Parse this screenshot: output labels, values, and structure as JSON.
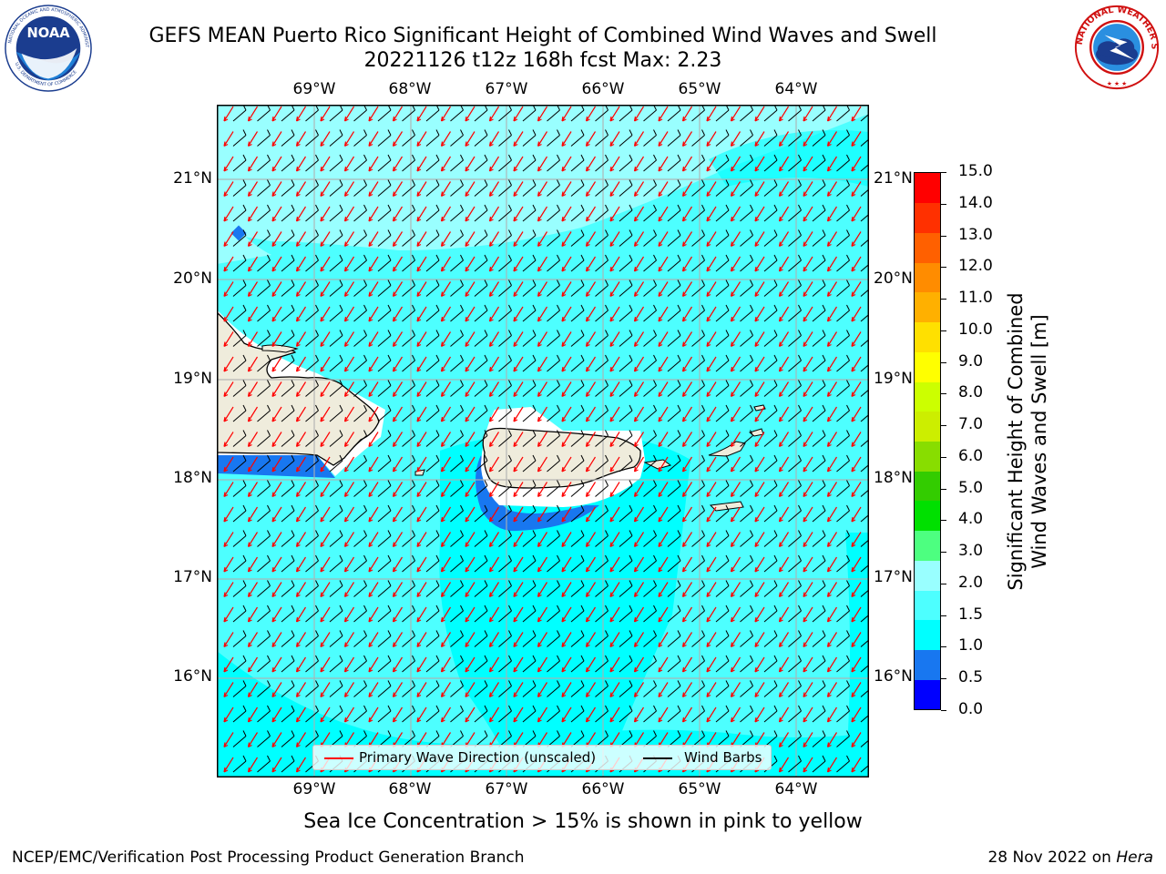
{
  "header": {
    "title_line1": "GEFS MEAN Puerto Rico Significant Height of Combined Wind Waves and Swell",
    "title_line2": "20221126 t12z 168h fcst   Max: 2.23"
  },
  "logos": {
    "left": {
      "name": "noaa-logo",
      "text": "NOAA",
      "ring_text": "NATIONAL OCEANIC AND ATMOSPHERIC ADMINISTRATION · U.S. DEPARTMENT OF COMMERCE"
    },
    "right": {
      "name": "nws-logo",
      "ring_text": "NATIONAL WEATHER SERVICE"
    }
  },
  "map": {
    "lon_labels": [
      "69°W",
      "68°W",
      "67°W",
      "66°W",
      "65°W",
      "64°W"
    ],
    "lat_labels": [
      "21°N",
      "20°N",
      "19°N",
      "18°N",
      "17°N",
      "16°N"
    ],
    "legend": {
      "wave_direction": "Primary Wave Direction (unscaled)",
      "wind_barbs": "Wind Barbs"
    },
    "colors": {
      "ocean_main": "#00ffff",
      "ocean_light": "#4dffff",
      "ocean_lighter": "#99ffff",
      "shallow_dark": "#1877f0",
      "land": "#efecdc",
      "arrow": "#ff0000",
      "barb": "#000000"
    }
  },
  "colorbar": {
    "label_line1": "Significant Height of Combined",
    "label_line2": "Wind Waves and Swell [m]",
    "ticks": [
      "15.0",
      "14.0",
      "13.0",
      "12.0",
      "11.0",
      "10.0",
      "9.0",
      "8.0",
      "7.0",
      "6.0",
      "5.0",
      "4.0",
      "3.0",
      "2.0",
      "1.5",
      "1.0",
      "0.5",
      "0.0"
    ],
    "colors_bottom_to_top": [
      "#0000ff",
      "#1877f0",
      "#00ffff",
      "#4dffff",
      "#99ffff",
      "#4dff80",
      "#00e000",
      "#33cc00",
      "#88dd00",
      "#ccee00",
      "#ccff00",
      "#ffff00",
      "#ffe000",
      "#ffb000",
      "#ff8c00",
      "#ff6000",
      "#ff3000",
      "#ff0000"
    ]
  },
  "notes": {
    "sea_ice": "Sea Ice Concentration > 15% is shown in pink to yellow"
  },
  "footer": {
    "left": "NCEP/EMC/Verification Post Processing Product Generation Branch",
    "right_prefix": "28 Nov 2022 on ",
    "right_machine": "Hera"
  }
}
